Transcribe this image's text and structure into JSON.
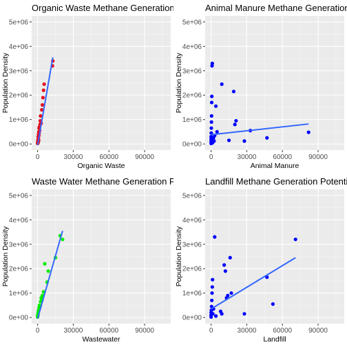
{
  "chart_data": [
    {
      "type": "scatter",
      "title": "Organic Waste Methane Generation Potential",
      "xlabel": "Organic Waste",
      "ylabel": "Population Density",
      "xlim": [
        -5000,
        112000
      ],
      "ylim": [
        -250000,
        5250000
      ],
      "x_ticks": [
        0,
        30000,
        60000,
        90000
      ],
      "x_tick_labels": [
        "0",
        "30000",
        "60000",
        "90000"
      ],
      "y_ticks": [
        0,
        1000000,
        2000000,
        3000000,
        4000000,
        5000000
      ],
      "y_tick_labels": [
        "0e+00",
        "1e+06",
        "2e+06",
        "3e+06",
        "4e+06",
        "5e+06"
      ],
      "grid": true,
      "point_color": "#e3101e",
      "line_color": "#3366ff",
      "points": [
        {
          "x": 0,
          "y": 20000
        },
        {
          "x": 100,
          "y": 60000
        },
        {
          "x": 200,
          "y": 120000
        },
        {
          "x": 300,
          "y": 40000
        },
        {
          "x": 400,
          "y": 180000
        },
        {
          "x": 500,
          "y": 300000
        },
        {
          "x": 600,
          "y": 90000
        },
        {
          "x": 700,
          "y": 240000
        },
        {
          "x": 800,
          "y": 400000
        },
        {
          "x": 900,
          "y": 150000
        },
        {
          "x": 1000,
          "y": 500000
        },
        {
          "x": 1100,
          "y": 350000
        },
        {
          "x": 1200,
          "y": 650000
        },
        {
          "x": 1300,
          "y": 450000
        },
        {
          "x": 1500,
          "y": 700000
        },
        {
          "x": 1700,
          "y": 550000
        },
        {
          "x": 2000,
          "y": 800000
        },
        {
          "x": 2200,
          "y": 950000
        },
        {
          "x": 2500,
          "y": 1150000
        },
        {
          "x": 3000,
          "y": 850000
        },
        {
          "x": 3500,
          "y": 1400000
        },
        {
          "x": 4000,
          "y": 1600000
        },
        {
          "x": 4500,
          "y": 1900000
        },
        {
          "x": 5000,
          "y": 2200000
        },
        {
          "x": 5500,
          "y": 2450000
        },
        {
          "x": 12500,
          "y": 3200000
        },
        {
          "x": 12800,
          "y": 3400000
        }
      ],
      "fit_line": {
        "x": [
          0,
          12800
        ],
        "y": [
          -50000,
          3550000
        ]
      }
    },
    {
      "type": "scatter",
      "title": "Animal Manure Methane Generation Potential",
      "xlabel": "Animal Manure",
      "ylabel": "Population Density",
      "xlim": [
        -5000,
        112000
      ],
      "ylim": [
        -250000,
        5250000
      ],
      "x_ticks": [
        0,
        30000,
        60000,
        90000
      ],
      "x_tick_labels": [
        "0",
        "30000",
        "60000",
        "90000"
      ],
      "y_ticks": [
        0,
        1000000,
        2000000,
        3000000,
        4000000,
        5000000
      ],
      "y_tick_labels": [
        "0e+00",
        "1e+06",
        "2e+06",
        "3e+06",
        "4e+06",
        "5e+06"
      ],
      "grid": true,
      "point_color": "#0000ff",
      "line_color": "#3366ff",
      "points": [
        {
          "x": 0,
          "y": 20000
        },
        {
          "x": 0,
          "y": 100000
        },
        {
          "x": 0,
          "y": 200000
        },
        {
          "x": 0,
          "y": 300000
        },
        {
          "x": 100,
          "y": 450000
        },
        {
          "x": 200,
          "y": 650000
        },
        {
          "x": 300,
          "y": 900000
        },
        {
          "x": 400,
          "y": 1150000
        },
        {
          "x": 500,
          "y": 1700000
        },
        {
          "x": 600,
          "y": 1950000
        },
        {
          "x": 800,
          "y": 3200000
        },
        {
          "x": 1000,
          "y": 3300000
        },
        {
          "x": 1200,
          "y": 50000
        },
        {
          "x": 1500,
          "y": 150000
        },
        {
          "x": 2000,
          "y": 250000
        },
        {
          "x": 2500,
          "y": 120000
        },
        {
          "x": 3000,
          "y": 350000
        },
        {
          "x": 4000,
          "y": 1550000
        },
        {
          "x": 5000,
          "y": 500000
        },
        {
          "x": 9000,
          "y": 2450000
        },
        {
          "x": 15000,
          "y": 150000
        },
        {
          "x": 19000,
          "y": 2150000
        },
        {
          "x": 20000,
          "y": 800000
        },
        {
          "x": 21000,
          "y": 950000
        },
        {
          "x": 28000,
          "y": 120000
        },
        {
          "x": 33000,
          "y": 550000
        },
        {
          "x": 47000,
          "y": 250000
        },
        {
          "x": 82000,
          "y": 480000
        }
      ],
      "fit_line": {
        "x": [
          0,
          82000
        ],
        "y": [
          380000,
          820000
        ]
      }
    },
    {
      "type": "scatter",
      "title": "Waste Water Methane Generation Potential",
      "xlabel": "Wastewater",
      "ylabel": "Population Density",
      "xlim": [
        -5000,
        112000
      ],
      "ylim": [
        -250000,
        5250000
      ],
      "x_ticks": [
        0,
        30000,
        60000,
        90000
      ],
      "x_tick_labels": [
        "0",
        "30000",
        "60000",
        "90000"
      ],
      "y_ticks": [
        0,
        1000000,
        2000000,
        3000000,
        4000000,
        5000000
      ],
      "y_tick_labels": [
        "0e+00",
        "1e+06",
        "2e+06",
        "3e+06",
        "4e+06",
        "5e+06"
      ],
      "grid": true,
      "point_color": "#00ee00",
      "line_color": "#3366ff",
      "points": [
        {
          "x": 0,
          "y": 20000
        },
        {
          "x": 100,
          "y": 60000
        },
        {
          "x": 200,
          "y": 100000
        },
        {
          "x": 300,
          "y": 150000
        },
        {
          "x": 500,
          "y": 200000
        },
        {
          "x": 700,
          "y": 250000
        },
        {
          "x": 900,
          "y": 300000
        },
        {
          "x": 1200,
          "y": 400000
        },
        {
          "x": 1500,
          "y": 500000
        },
        {
          "x": 2000,
          "y": 450000
        },
        {
          "x": 2500,
          "y": 650000
        },
        {
          "x": 3000,
          "y": 800000
        },
        {
          "x": 3500,
          "y": 700000
        },
        {
          "x": 4000,
          "y": 900000
        },
        {
          "x": 5000,
          "y": 1050000
        },
        {
          "x": 6000,
          "y": 2200000
        },
        {
          "x": 8000,
          "y": 1450000
        },
        {
          "x": 9000,
          "y": 1900000
        },
        {
          "x": 15000,
          "y": 2450000
        },
        {
          "x": 19000,
          "y": 3350000
        },
        {
          "x": 21000,
          "y": 3200000
        }
      ],
      "fit_line": {
        "x": [
          0,
          21000
        ],
        "y": [
          -50000,
          3550000
        ]
      }
    },
    {
      "type": "scatter",
      "title": "Landfill Methane Generation Potential",
      "xlabel": "Landfill",
      "ylabel": "Population Density",
      "xlim": [
        -5000,
        112000
      ],
      "ylim": [
        -250000,
        5250000
      ],
      "x_ticks": [
        0,
        30000,
        60000,
        90000
      ],
      "x_tick_labels": [
        "0",
        "30000",
        "60000",
        "90000"
      ],
      "y_ticks": [
        0,
        1000000,
        2000000,
        3000000,
        4000000,
        5000000
      ],
      "y_tick_labels": [
        "0e+00",
        "1e+06",
        "2e+06",
        "3e+06",
        "4e+06",
        "5e+06"
      ],
      "grid": true,
      "point_color": "#0000ff",
      "line_color": "#3366ff",
      "points": [
        {
          "x": 0,
          "y": 20000
        },
        {
          "x": 0,
          "y": 100000
        },
        {
          "x": 0,
          "y": 200000
        },
        {
          "x": 200,
          "y": 300000
        },
        {
          "x": 400,
          "y": 450000
        },
        {
          "x": 600,
          "y": 700000
        },
        {
          "x": 800,
          "y": 1000000
        },
        {
          "x": 1000,
          "y": 1250000
        },
        {
          "x": 1200,
          "y": 1550000
        },
        {
          "x": 1500,
          "y": 150000
        },
        {
          "x": 2000,
          "y": 350000
        },
        {
          "x": 3000,
          "y": 3300000
        },
        {
          "x": 4000,
          "y": 60000
        },
        {
          "x": 8000,
          "y": 250000
        },
        {
          "x": 9000,
          "y": 150000
        },
        {
          "x": 11000,
          "y": 2150000
        },
        {
          "x": 12000,
          "y": 1900000
        },
        {
          "x": 13000,
          "y": 800000
        },
        {
          "x": 14000,
          "y": 900000
        },
        {
          "x": 16000,
          "y": 2450000
        },
        {
          "x": 17000,
          "y": 1000000
        },
        {
          "x": 28000,
          "y": 150000
        },
        {
          "x": 47000,
          "y": 1650000
        },
        {
          "x": 52000,
          "y": 550000
        },
        {
          "x": 71000,
          "y": 3200000
        }
      ],
      "fit_line": {
        "x": [
          0,
          71000
        ],
        "y": [
          350000,
          2450000
        ]
      }
    }
  ]
}
